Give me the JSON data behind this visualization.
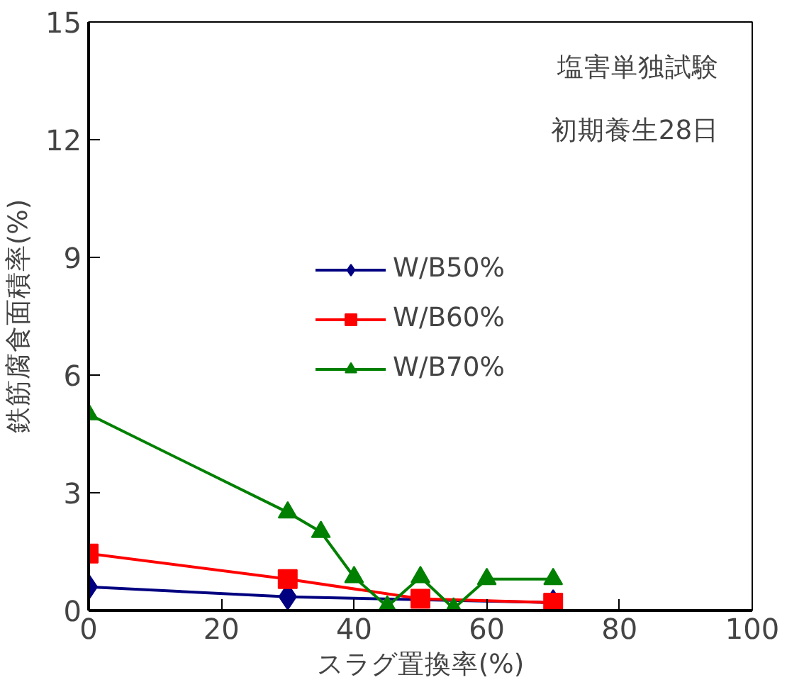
{
  "chart_data": {
    "type": "line",
    "xlabel": "スラグ置換率(%)",
    "ylabel": "鉄筋腐食面積率(%)",
    "annotations": [
      "塩害単独試験",
      "初期養生28日"
    ],
    "xlim": [
      0,
      100
    ],
    "xticks": [
      0,
      20,
      40,
      60,
      80,
      100
    ],
    "ylim": [
      0,
      15
    ],
    "yticks": [
      0,
      3,
      6,
      9,
      12,
      15
    ],
    "grid": false,
    "legend": "right",
    "line_style": "solid",
    "series": [
      {
        "name": "W/B50%",
        "color": "#000080",
        "marker": "diamond",
        "x": [
          0,
          30,
          70
        ],
        "values": [
          0.6,
          0.35,
          0.2
        ]
      },
      {
        "name": "W/B60%",
        "color": "#ff0000",
        "marker": "square",
        "x": [
          0,
          30,
          50,
          70
        ],
        "values": [
          1.45,
          0.8,
          0.3,
          0.2
        ]
      },
      {
        "name": "W/B70%",
        "color": "#008000",
        "marker": "triangle",
        "x": [
          0,
          30,
          35,
          40,
          45,
          50,
          55,
          60,
          70
        ],
        "values": [
          5.0,
          2.5,
          2.0,
          0.85,
          0.1,
          0.85,
          0.05,
          0.8,
          0.8
        ]
      }
    ]
  }
}
